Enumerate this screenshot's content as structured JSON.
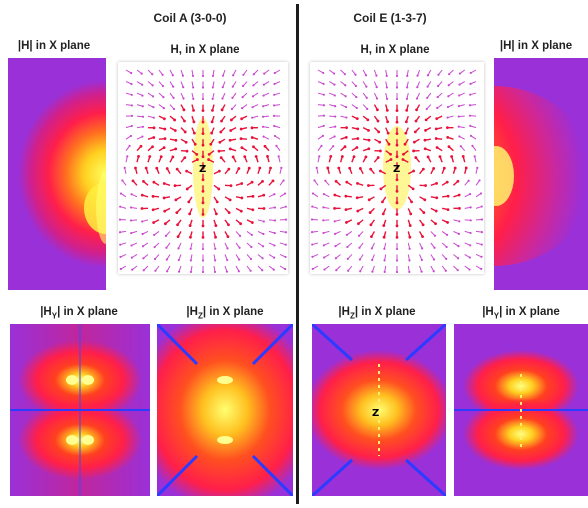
{
  "left": {
    "title": "Coil A (3-0-0)",
    "top_left_label": "|H| in X plane",
    "top_right_label": "H, in X plane",
    "bottom_left_label": {
      "pre": "|H",
      "sub": "Y",
      "post": "| in X plane"
    },
    "bottom_right_label": {
      "pre": "|H",
      "sub": "Z",
      "post": "| in X plane"
    }
  },
  "right": {
    "title": "Coil E (1-3-7)",
    "top_left_label": "H, in X plane",
    "top_right_label": "|H| in X plane",
    "bottom_left_label": {
      "pre": "|H",
      "sub": "Z",
      "post": "| in X plane"
    },
    "bottom_right_label": {
      "pre": "|H",
      "sub": "Y",
      "post": "| in X plane"
    }
  },
  "colors": {
    "heat_low": "#8a2be2",
    "heat_mid": "#ff1f4a",
    "heat_high": "#ffff40",
    "axis_blue": "#2a3cff",
    "arrow_red": "#e8123a",
    "arrow_pink": "#d44ad6"
  }
}
